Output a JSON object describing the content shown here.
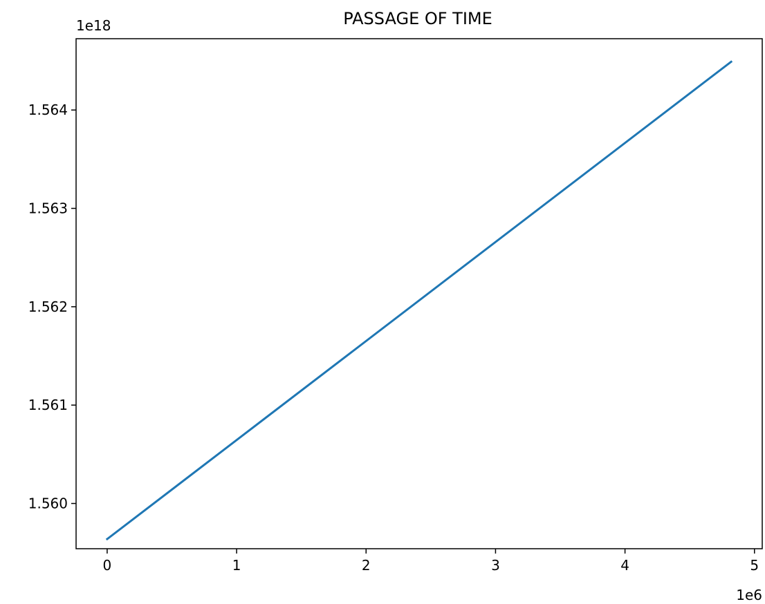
{
  "chart_data": {
    "type": "line",
    "title": "PASSAGE OF TIME",
    "xlabel": "",
    "ylabel": "",
    "x_offset_label": "1e6",
    "y_offset_label": "1e18",
    "x_scale": 1000000,
    "y_scale": 1000000000000000000,
    "xlim": [
      -240000,
      5060000
    ],
    "ylim": [
      1.55954e+18,
      1.564725e+18
    ],
    "x_ticks": [
      0,
      1000000,
      2000000,
      3000000,
      4000000,
      5000000
    ],
    "x_tick_labels": [
      "0",
      "1",
      "2",
      "3",
      "4",
      "5"
    ],
    "y_ticks": [
      1.56e+18,
      1.561e+18,
      1.562e+18,
      1.563e+18,
      1.564e+18
    ],
    "y_tick_labels": [
      "1.560",
      "1.561",
      "1.562",
      "1.563",
      "1.564"
    ],
    "grid": false,
    "series": [
      {
        "color": "#1f77b4",
        "x": [
          0,
          4820000
        ],
        "y": [
          1.559638e+18,
          1.564491e+18
        ]
      }
    ]
  }
}
